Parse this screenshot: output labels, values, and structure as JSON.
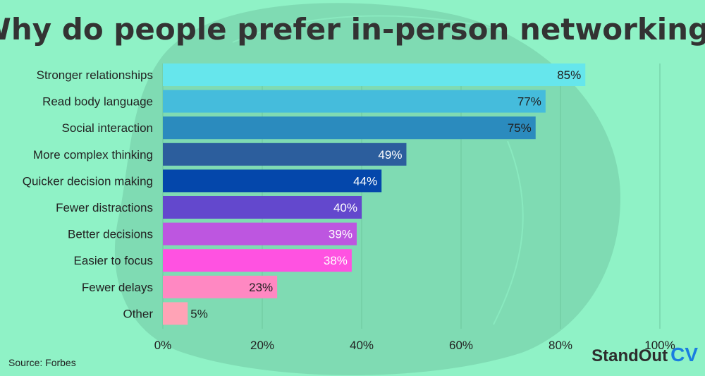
{
  "chart_data": {
    "type": "bar",
    "orientation": "horizontal",
    "title": "Why do people prefer in-person networking?",
    "categories": [
      "Stronger relationships",
      "Read body language",
      "Social interaction",
      "More complex thinking",
      "Quicker decision making",
      "Fewer distractions",
      "Better decisions",
      "Easier to focus",
      "Fewer delays",
      "Other"
    ],
    "values": [
      85,
      77,
      75,
      49,
      44,
      40,
      39,
      38,
      23,
      5
    ],
    "value_labels": [
      "85%",
      "77%",
      "75%",
      "49%",
      "44%",
      "40%",
      "39%",
      "38%",
      "23%",
      "5%"
    ],
    "bar_colors": [
      "#66e6ec",
      "#45bcdc",
      "#2b8bbe",
      "#2c5e9d",
      "#0447ab",
      "#6348cd",
      "#bd56e0",
      "#ff52e1",
      "#ff88c2",
      "#ffa3b6"
    ],
    "label_colors": [
      "#1f1f1f",
      "#1f1f1f",
      "#1f1f1f",
      "#ffffff",
      "#ffffff",
      "#ffffff",
      "#ffffff",
      "#ffffff",
      "#1f1f1f",
      "#1f1f1f"
    ],
    "xlim": [
      0,
      100
    ],
    "x_ticks": [
      0,
      20,
      40,
      60,
      80,
      100
    ],
    "x_tick_labels": [
      "0%",
      "20%",
      "40%",
      "60%",
      "80%",
      "100%"
    ],
    "grid": true,
    "xlabel": "",
    "ylabel": ""
  },
  "source": "Source: Forbes",
  "logo": {
    "word": "StandOut",
    "accent": "CV",
    "accent_color": "#1a7de0"
  },
  "colors": {
    "background": "#8ff2c6",
    "blob": "#7fdbb3",
    "text": "#333333",
    "grid": "#6cc79e"
  }
}
